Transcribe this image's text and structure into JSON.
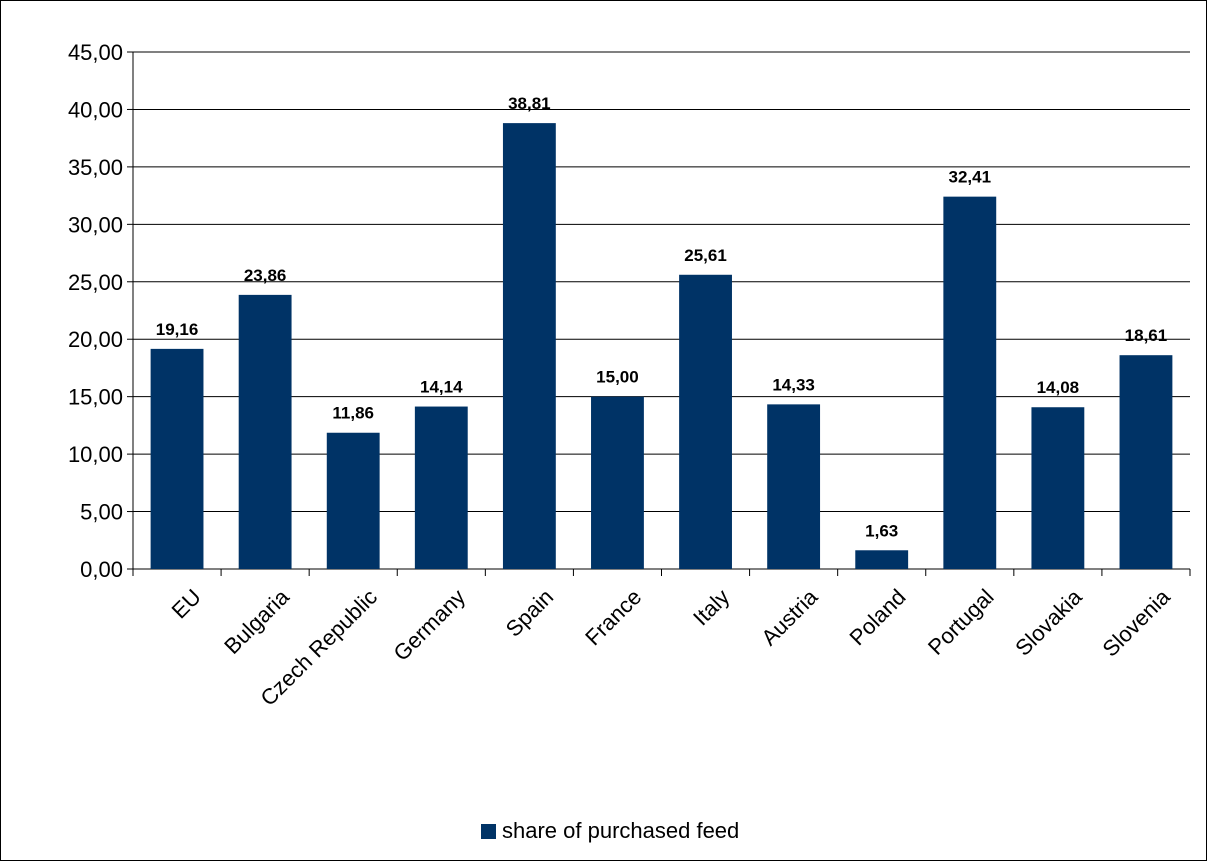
{
  "chart_data": {
    "type": "bar",
    "categories": [
      "EU",
      "Bulgaria",
      "Czech Republic",
      "Germany",
      "Spain",
      "France",
      "Italy",
      "Austria",
      "Poland",
      "Portugal",
      "Slovakia",
      "Slovenia"
    ],
    "series": [
      {
        "name": "share of purchased feed",
        "values": [
          19.16,
          23.86,
          11.86,
          14.14,
          38.81,
          15.0,
          25.61,
          14.33,
          1.63,
          32.41,
          14.08,
          18.61
        ],
        "data_labels": [
          "19,16",
          "23,86",
          "11,86",
          "14,14",
          "38,81",
          "15,00",
          "25,61",
          "14,33",
          "1,63",
          "32,41",
          "14,08",
          "18,61"
        ],
        "color": "#003366"
      }
    ],
    "ylim": [
      0,
      45
    ],
    "y_ticks": [
      0,
      5,
      10,
      15,
      20,
      25,
      30,
      35,
      40,
      45
    ],
    "y_tick_labels": [
      "0,00",
      "5,00",
      "10,00",
      "15,00",
      "20,00",
      "25,00",
      "30,00",
      "35,00",
      "40,00",
      "45,00"
    ],
    "grid": true,
    "legend_position": "bottom"
  }
}
